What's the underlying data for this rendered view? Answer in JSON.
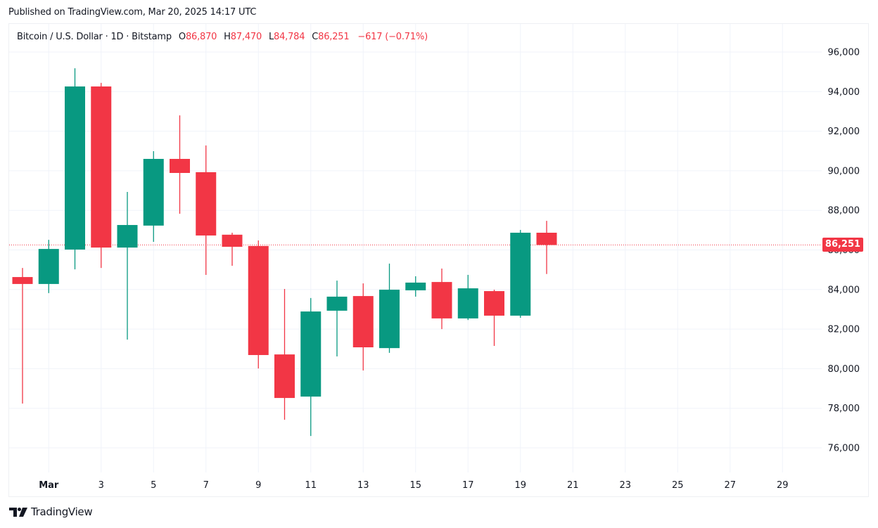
{
  "header": {
    "published": "Published on TradingView.com, Mar 20, 2025 14:17 UTC"
  },
  "legend": {
    "symbol": "Bitcoin / U.S. Dollar · 1D · Bitstamp",
    "open_label": "O",
    "open": "86,870",
    "high_label": "H",
    "high": "87,470",
    "low_label": "L",
    "low": "84,784",
    "close_label": "C",
    "close": "86,251",
    "change": "−617 (−0.71%)"
  },
  "price_tag": {
    "label": "86,251",
    "color": "#f23645"
  },
  "footer": {
    "logo_text": "TradingView"
  },
  "colors": {
    "up": "#089981",
    "down": "#f23645",
    "grid": "#f0f3fa"
  },
  "chart_data": {
    "type": "candlestick",
    "title": "Bitcoin / U.S. Dollar · 1D · Bitstamp",
    "xlabel": "",
    "ylabel": "",
    "ylim": [
      74800,
      97500
    ],
    "y_ticks": [
      "96,000",
      "94,000",
      "92,000",
      "90,000",
      "88,000",
      "86,000",
      "84,000",
      "82,000",
      "80,000",
      "78,000",
      "76,000"
    ],
    "x_ticks": [
      "Mar",
      "3",
      "5",
      "7",
      "9",
      "11",
      "13",
      "15",
      "17",
      "19",
      "21",
      "23",
      "25",
      "27",
      "29"
    ],
    "last_price": 86251,
    "grid": true,
    "candles": [
      {
        "date": "Feb 28",
        "open": 84630,
        "high": 85090,
        "low": 78240,
        "close": 84280
      },
      {
        "date": "Mar 1",
        "open": 84280,
        "high": 86510,
        "low": 83820,
        "close": 86050
      },
      {
        "date": "Mar 2",
        "open": 86020,
        "high": 95180,
        "low": 85020,
        "close": 94260
      },
      {
        "date": "Mar 3",
        "open": 94260,
        "high": 94440,
        "low": 85090,
        "close": 86120
      },
      {
        "date": "Mar 4",
        "open": 86120,
        "high": 88930,
        "low": 81470,
        "close": 87260
      },
      {
        "date": "Mar 5",
        "open": 87230,
        "high": 90990,
        "low": 86410,
        "close": 90600
      },
      {
        "date": "Mar 6",
        "open": 90600,
        "high": 92800,
        "low": 87830,
        "close": 89890
      },
      {
        "date": "Mar 7",
        "open": 89930,
        "high": 91280,
        "low": 84740,
        "close": 86730
      },
      {
        "date": "Mar 8",
        "open": 86770,
        "high": 86870,
        "low": 85200,
        "close": 86160
      },
      {
        "date": "Mar 9",
        "open": 86200,
        "high": 86480,
        "low": 80010,
        "close": 80690
      },
      {
        "date": "Mar 10",
        "open": 80720,
        "high": 84030,
        "low": 77420,
        "close": 78520
      },
      {
        "date": "Mar 11",
        "open": 78590,
        "high": 83570,
        "low": 76600,
        "close": 82890
      },
      {
        "date": "Mar 12",
        "open": 82930,
        "high": 84450,
        "low": 80620,
        "close": 83640
      },
      {
        "date": "Mar 13",
        "open": 83670,
        "high": 84310,
        "low": 79910,
        "close": 81080
      },
      {
        "date": "Mar 14",
        "open": 81040,
        "high": 85310,
        "low": 80800,
        "close": 83990
      },
      {
        "date": "Mar 15",
        "open": 83960,
        "high": 84670,
        "low": 83640,
        "close": 84350
      },
      {
        "date": "Mar 16",
        "open": 84380,
        "high": 85060,
        "low": 82000,
        "close": 82540
      },
      {
        "date": "Mar 17",
        "open": 82540,
        "high": 84740,
        "low": 82460,
        "close": 84060
      },
      {
        "date": "Mar 18",
        "open": 83920,
        "high": 83990,
        "low": 81150,
        "close": 82680
      },
      {
        "date": "Mar 19",
        "open": 82680,
        "high": 87010,
        "low": 82570,
        "close": 86870
      },
      {
        "date": "Mar 20",
        "open": 86870,
        "high": 87470,
        "low": 84784,
        "close": 86251
      }
    ]
  }
}
